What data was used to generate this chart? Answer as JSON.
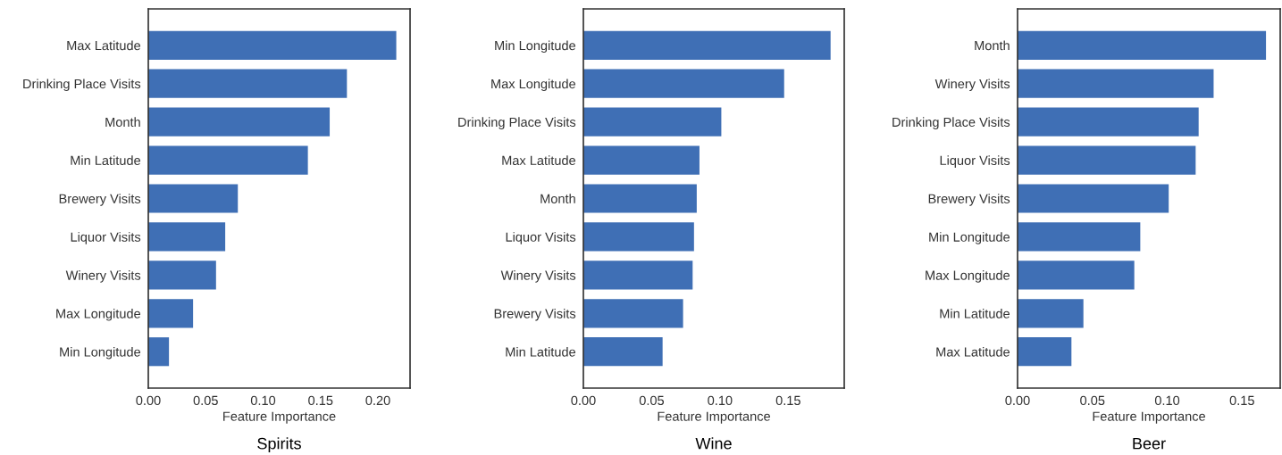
{
  "chart_data": [
    {
      "type": "bar",
      "orientation": "horizontal",
      "title": "Spirits",
      "xlabel": "Feature Importance",
      "categories": [
        "Max Latitude",
        "Drinking Place Visits",
        "Month",
        "Min Latitude",
        "Brewery Visits",
        "Liquor Visits",
        "Winery Visits",
        "Max Longitude",
        "Min Longitude"
      ],
      "values": [
        0.216,
        0.173,
        0.158,
        0.139,
        0.078,
        0.067,
        0.059,
        0.039,
        0.018
      ],
      "color": "#3f6fb5",
      "xlim": [
        0,
        0.228
      ],
      "xticks": [
        {
          "value": 0,
          "label": "0.00"
        },
        {
          "value": 0.05,
          "label": "0.05"
        },
        {
          "value": 0.1,
          "label": "0.10"
        },
        {
          "value": 0.15,
          "label": "0.15"
        },
        {
          "value": 0.2,
          "label": "0.20"
        }
      ],
      "grid": false
    },
    {
      "type": "bar",
      "orientation": "horizontal",
      "title": "Wine",
      "xlabel": "Feature Importance",
      "categories": [
        "Min Longitude",
        "Max Longitude",
        "Drinking Place Visits",
        "Max Latitude",
        "Month",
        "Liquor Visits",
        "Winery Visits",
        "Brewery Visits",
        "Min Latitude"
      ],
      "values": [
        0.181,
        0.147,
        0.101,
        0.085,
        0.083,
        0.081,
        0.08,
        0.073,
        0.058
      ],
      "color": "#3f6fb5",
      "xlim": [
        0,
        0.191
      ],
      "xticks": [
        {
          "value": 0,
          "label": "0.00"
        },
        {
          "value": 0.05,
          "label": "0.05"
        },
        {
          "value": 0.1,
          "label": "0.10"
        },
        {
          "value": 0.15,
          "label": "0.15"
        }
      ],
      "grid": false
    },
    {
      "type": "bar",
      "orientation": "horizontal",
      "title": "Beer",
      "xlabel": "Feature Importance",
      "categories": [
        "Month",
        "Winery Visits",
        "Drinking Place Visits",
        "Liquor Visits",
        "Brewery Visits",
        "Min Longitude",
        "Max Longitude",
        "Min Latitude",
        "Max Latitude"
      ],
      "values": [
        0.166,
        0.131,
        0.121,
        0.119,
        0.101,
        0.082,
        0.078,
        0.044,
        0.036
      ],
      "color": "#3f6fb5",
      "xlim": [
        0,
        0.1755
      ],
      "xticks": [
        {
          "value": 0,
          "label": "0.00"
        },
        {
          "value": 0.05,
          "label": "0.05"
        },
        {
          "value": 0.1,
          "label": "0.10"
        },
        {
          "value": 0.15,
          "label": "0.15"
        }
      ],
      "grid": false
    }
  ]
}
